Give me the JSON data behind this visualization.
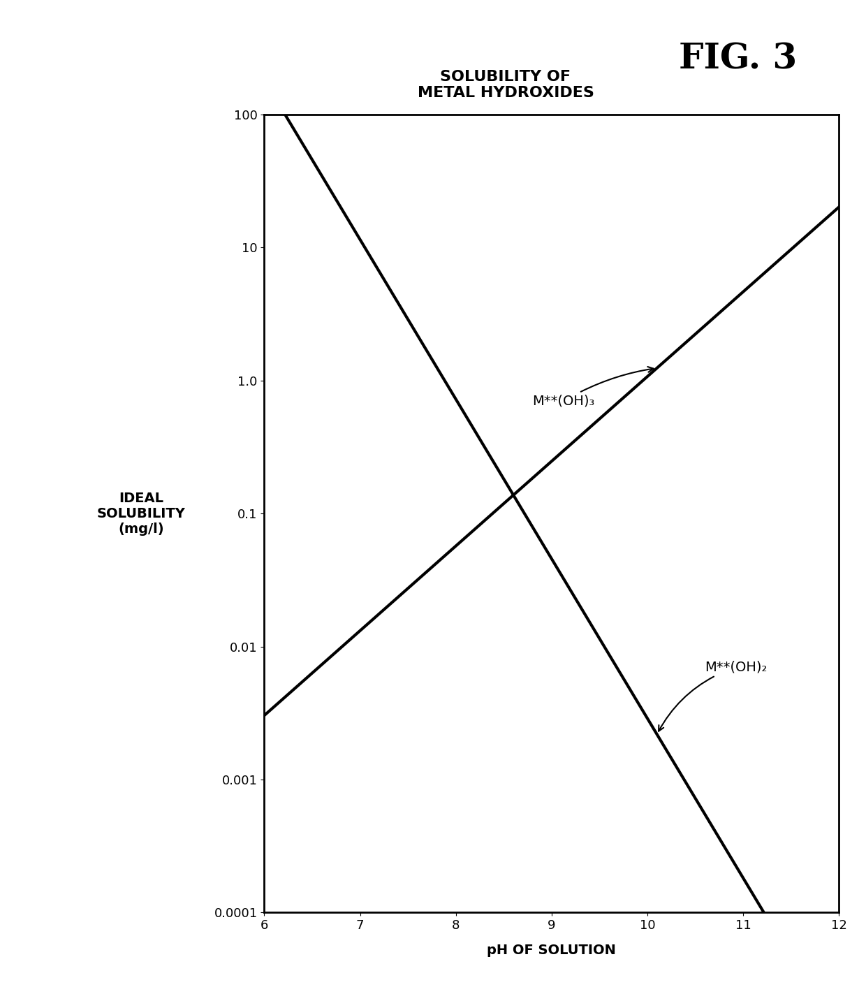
{
  "title_line1": "SOLUBILITY OF",
  "title_line2": "METAL HYDROXIDES",
  "fig_label": "FIG. 3",
  "xlabel": "pH OF SOLUTION",
  "ylabel": "IDEAL\nSOLUBILITY\n(mg/l)",
  "xlim": [
    6,
    12
  ],
  "ylim": [
    0.0001,
    100
  ],
  "y_ticks": [
    0.0001,
    0.001,
    0.01,
    0.1,
    1.0,
    10,
    100
  ],
  "y_tick_labels": [
    "0.0001",
    "0.001",
    "0.01",
    "0.1",
    "1.0",
    "10",
    "100"
  ],
  "x_ticks": [
    6,
    7,
    8,
    9,
    10,
    11,
    12
  ],
  "curve_decreasing_label": "M**(OH)₂",
  "curve_increasing_label": "M**(OH)₃",
  "background_color": "#ffffff",
  "line_color": "#000000",
  "line_width": 3.0,
  "annotation_fontsize": 14,
  "title_fontsize": 16,
  "axis_label_fontsize": 14,
  "tick_fontsize": 13,
  "fig_label_fontsize": 36,
  "curve_dec_slope": -2.0,
  "curve_dec_const": 21.3,
  "curve_inc_slope": 2.0,
  "curve_inc_const": -14.7
}
